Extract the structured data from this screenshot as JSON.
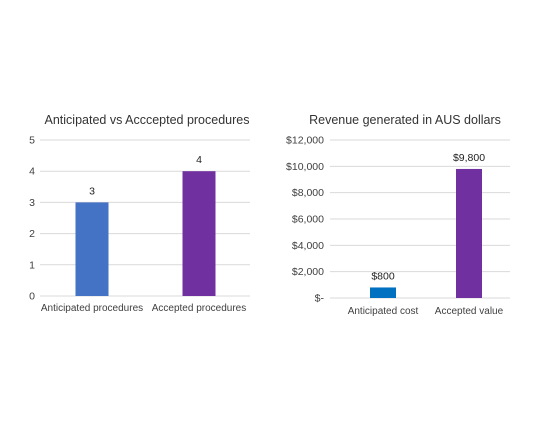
{
  "chart_data": [
    {
      "type": "bar",
      "title": "Anticipated vs Acccepted procedures",
      "categories": [
        "Anticipated procedures",
        "Accepted procedures"
      ],
      "values": [
        3,
        4
      ],
      "data_labels": [
        "3",
        "4"
      ],
      "ylim": [
        0,
        5
      ],
      "yticks": [
        0,
        1,
        2,
        3,
        4,
        5
      ],
      "ytick_labels": [
        "0",
        "1",
        "2",
        "3",
        "4",
        "5"
      ],
      "bar_colors": [
        "#4472C4",
        "#7030A0"
      ],
      "grid": true,
      "legend": "none",
      "xlabel": "",
      "ylabel": ""
    },
    {
      "type": "bar",
      "title": "Revenue generated in AUS dollars",
      "categories": [
        "Anticipated cost",
        "Accepted value"
      ],
      "values": [
        800,
        9800
      ],
      "data_labels": [
        "$800",
        "$9,800"
      ],
      "ylim": [
        0,
        12000
      ],
      "yticks": [
        0,
        2000,
        4000,
        6000,
        8000,
        10000,
        12000
      ],
      "ytick_labels": [
        "$-",
        "$2,000",
        "$4,000",
        "$6,000",
        "$8,000",
        "$10,000",
        "$12,000"
      ],
      "bar_colors": [
        "#0070C0",
        "#7030A0"
      ],
      "grid": true,
      "legend": "none",
      "xlabel": "",
      "ylabel": ""
    }
  ]
}
